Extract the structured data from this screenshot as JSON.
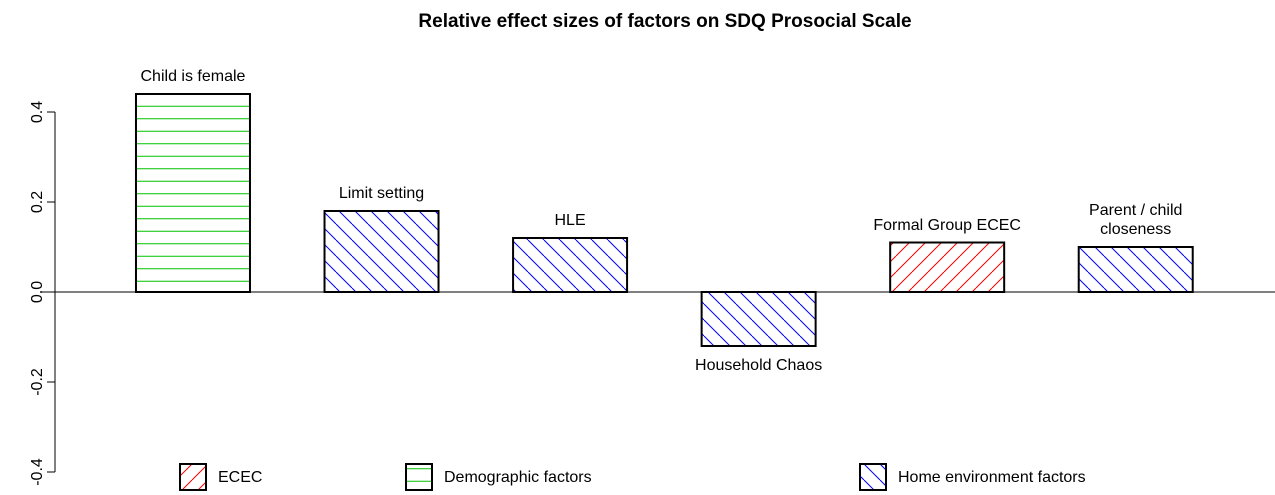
{
  "chart_data": {
    "type": "bar",
    "title": "Relative effect sizes of factors on  SDQ Prosocial Scale",
    "categories": [
      "Child is female",
      "Limit setting",
      "HLE",
      "Household Chaos",
      "Formal Group ECEC",
      "Parent / child\ncloseness"
    ],
    "values": [
      0.44,
      0.18,
      0.12,
      -0.12,
      0.11,
      0.1
    ],
    "colors": [
      "#00c000",
      "#0000ff",
      "#0000ff",
      "#0000ff",
      "#ff0000",
      "#0000ff"
    ],
    "patterns": [
      "horizontal",
      "diagonal-down",
      "diagonal-down",
      "diagonal-down",
      "diagonal-up",
      "diagonal-down"
    ],
    "ylim": [
      -0.4,
      0.5
    ],
    "yticks": [
      -0.4,
      -0.2,
      {
        "value": 0,
        "label": "0.0"
      },
      0.2,
      0.4
    ],
    "legend": [
      {
        "name": "ECEC",
        "color": "#ff0000",
        "pattern": "diagonal-up"
      },
      {
        "name": "Demographic factors",
        "color": "#00c000",
        "pattern": "horizontal"
      },
      {
        "name": "Home environment factors",
        "color": "#0000ff",
        "pattern": "diagonal-down"
      }
    ]
  }
}
